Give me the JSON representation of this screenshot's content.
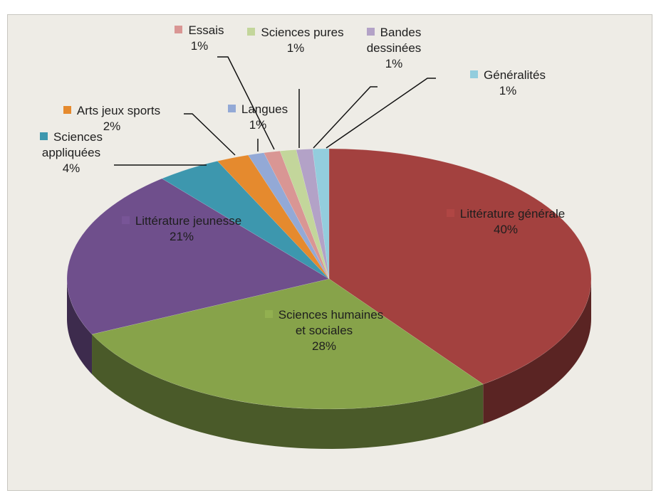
{
  "chart_data": {
    "type": "pie",
    "categories": [
      "Littérature générale",
      "Sciences humaines et sociales",
      "Littérature jeunesse",
      "Sciences appliquées",
      "Arts jeux sports",
      "Langues",
      "Essais",
      "Sciences pures",
      "Bandes dessinées",
      "Généralités"
    ],
    "values": [
      40,
      28,
      21,
      4,
      2,
      1,
      1,
      1,
      1,
      1
    ],
    "value_labels": [
      "40%",
      "28%",
      "21%",
      "4%",
      "2%",
      "1%",
      "1%",
      "1%",
      "1%",
      "1%"
    ],
    "colors": [
      "#a3413f",
      "#87a34a",
      "#6f4f8c",
      "#3d97ae",
      "#e58a2e",
      "#93a9d6",
      "#d99694",
      "#c3d69b",
      "#b3a2c7",
      "#93cddd"
    ]
  }
}
